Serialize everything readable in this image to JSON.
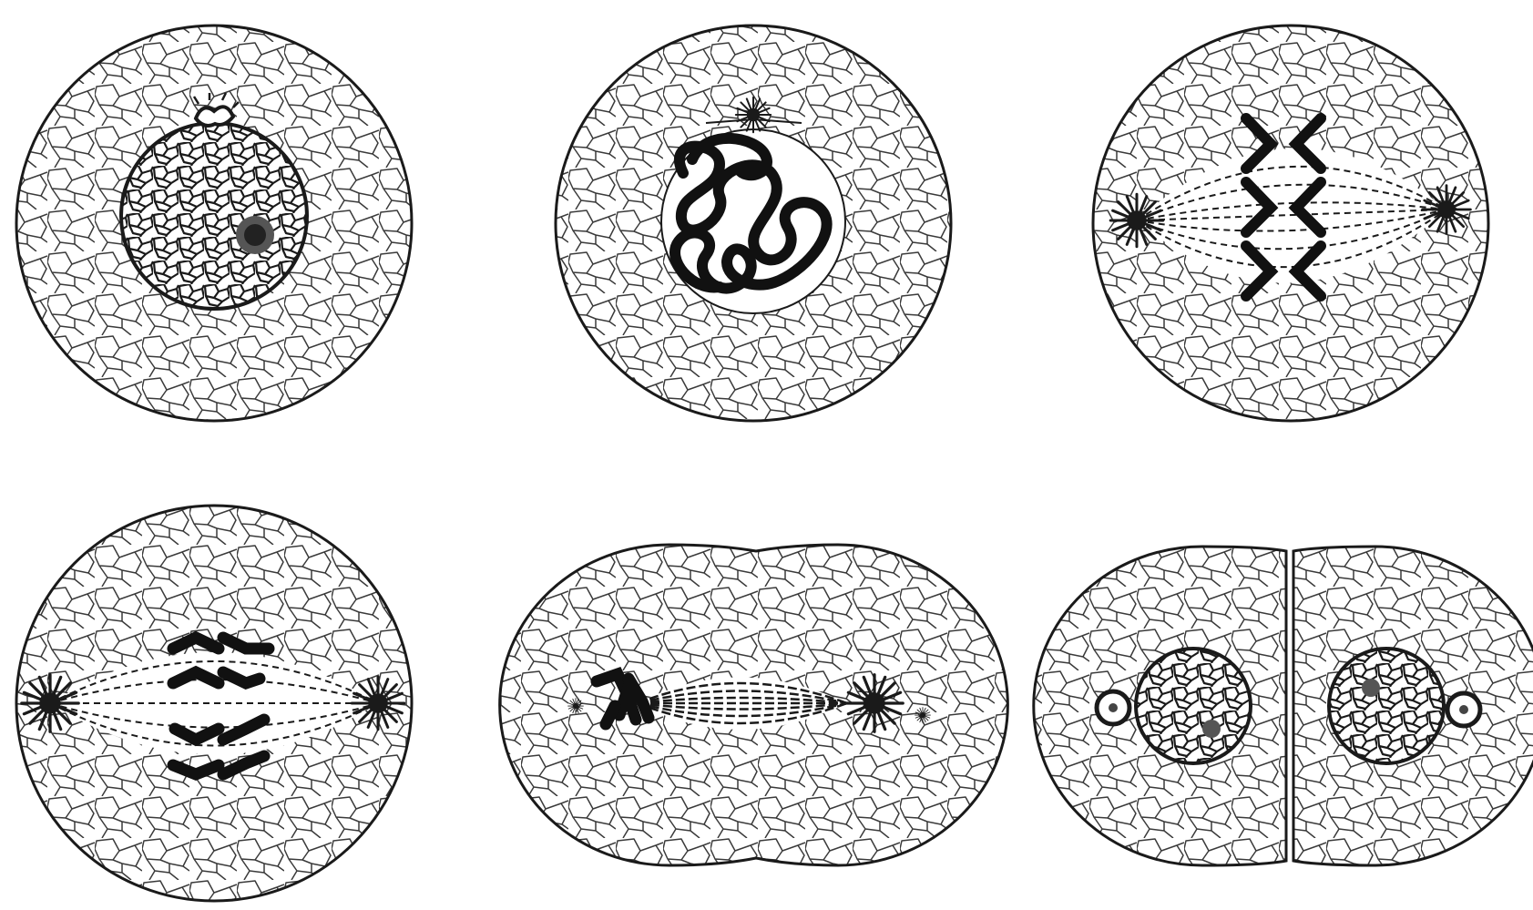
{
  "figure": {
    "panels": [
      {
        "stage": "interphase",
        "icon": "interphase-cell-icon"
      },
      {
        "stage": "prophase",
        "icon": "prophase-cell-icon"
      },
      {
        "stage": "metaphase",
        "icon": "metaphase-cell-icon"
      },
      {
        "stage": "anaphase",
        "icon": "anaphase-cell-icon"
      },
      {
        "stage": "telophase",
        "icon": "telophase-cell-icon"
      },
      {
        "stage": "cytokinesis",
        "icon": "daughter-cells-icon"
      }
    ],
    "colors": {
      "ink": "#1a1a1a",
      "paper": "#ffffff",
      "reticulum": "#3a3a3a"
    }
  }
}
